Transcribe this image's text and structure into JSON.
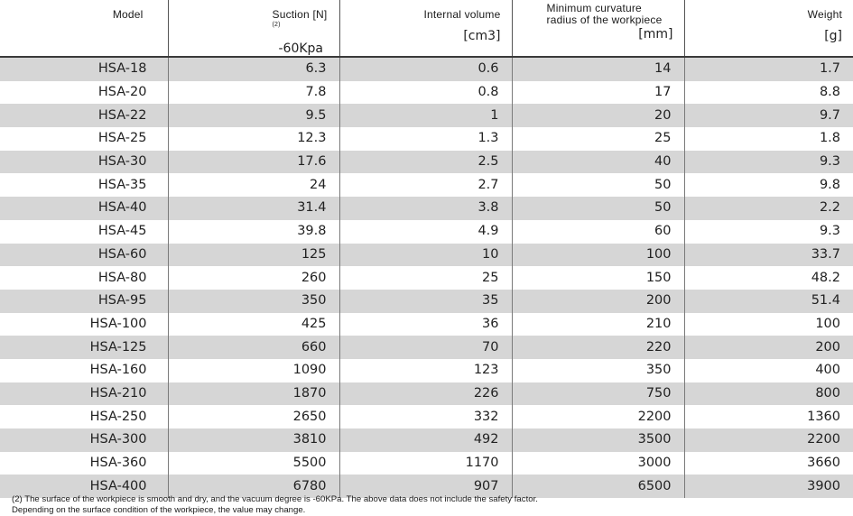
{
  "table": {
    "headers": {
      "model": {
        "line1": "Model"
      },
      "suction": {
        "line1": "Suction [N]",
        "note_mark": "(2)",
        "line2": "-60Kpa"
      },
      "volume": {
        "line1": "Internal volume",
        "line2": "[cm3]"
      },
      "radius": {
        "line1a": "Minimum curvature",
        "line1b": "radius of the workpiece",
        "line2": "[mm]"
      },
      "weight": {
        "line1": "Weight",
        "line2": "[g]"
      }
    },
    "rows": [
      {
        "model": "HSA-18",
        "suction": "6.3",
        "volume": "0.6",
        "radius": "14",
        "weight": "1.7"
      },
      {
        "model": "HSA-20",
        "suction": "7.8",
        "volume": "0.8",
        "radius": "17",
        "weight": "8.8"
      },
      {
        "model": "HSA-22",
        "suction": "9.5",
        "volume": "1",
        "radius": "20",
        "weight": "9.7"
      },
      {
        "model": "HSA-25",
        "suction": "12.3",
        "volume": "1.3",
        "radius": "25",
        "weight": "1.8"
      },
      {
        "model": "HSA-30",
        "suction": "17.6",
        "volume": "2.5",
        "radius": "40",
        "weight": "9.3"
      },
      {
        "model": "HSA-35",
        "suction": "24",
        "volume": "2.7",
        "radius": "50",
        "weight": "9.8"
      },
      {
        "model": "HSA-40",
        "suction": "31.4",
        "volume": "3.8",
        "radius": "50",
        "weight": "2.2"
      },
      {
        "model": "HSA-45",
        "suction": "39.8",
        "volume": "4.9",
        "radius": "60",
        "weight": "9.3"
      },
      {
        "model": "HSA-60",
        "suction": "125",
        "volume": "10",
        "radius": "100",
        "weight": "33.7"
      },
      {
        "model": "HSA-80",
        "suction": "260",
        "volume": "25",
        "radius": "150",
        "weight": "48.2"
      },
      {
        "model": "HSA-95",
        "suction": "350",
        "volume": "35",
        "radius": "200",
        "weight": "51.4"
      },
      {
        "model": "HSA-100",
        "suction": "425",
        "volume": "36",
        "radius": "210",
        "weight": "100"
      },
      {
        "model": "HSA-125",
        "suction": "660",
        "volume": "70",
        "radius": "220",
        "weight": "200"
      },
      {
        "model": "HSA-160",
        "suction": "1090",
        "volume": "123",
        "radius": "350",
        "weight": "400"
      },
      {
        "model": "HSA-210",
        "suction": "1870",
        "volume": "226",
        "radius": "750",
        "weight": "800"
      },
      {
        "model": "HSA-250",
        "suction": "2650",
        "volume": "332",
        "radius": "2200",
        "weight": "1360"
      },
      {
        "model": "HSA-300",
        "suction": "3810",
        "volume": "492",
        "radius": "3500",
        "weight": "2200"
      },
      {
        "model": "HSA-360",
        "suction": "5500",
        "volume": "1170",
        "radius": "3000",
        "weight": "3660"
      },
      {
        "model": "HSA-400",
        "suction": "6780",
        "volume": "907",
        "radius": "6500",
        "weight": "3900"
      }
    ]
  },
  "footnotes": {
    "line1": "(2) The surface of the workpiece is smooth and dry, and the vacuum degree is -60KPa. The above data does not include the safety factor.",
    "line2": "Depending on the surface condition of the workpiece, the value may change."
  }
}
